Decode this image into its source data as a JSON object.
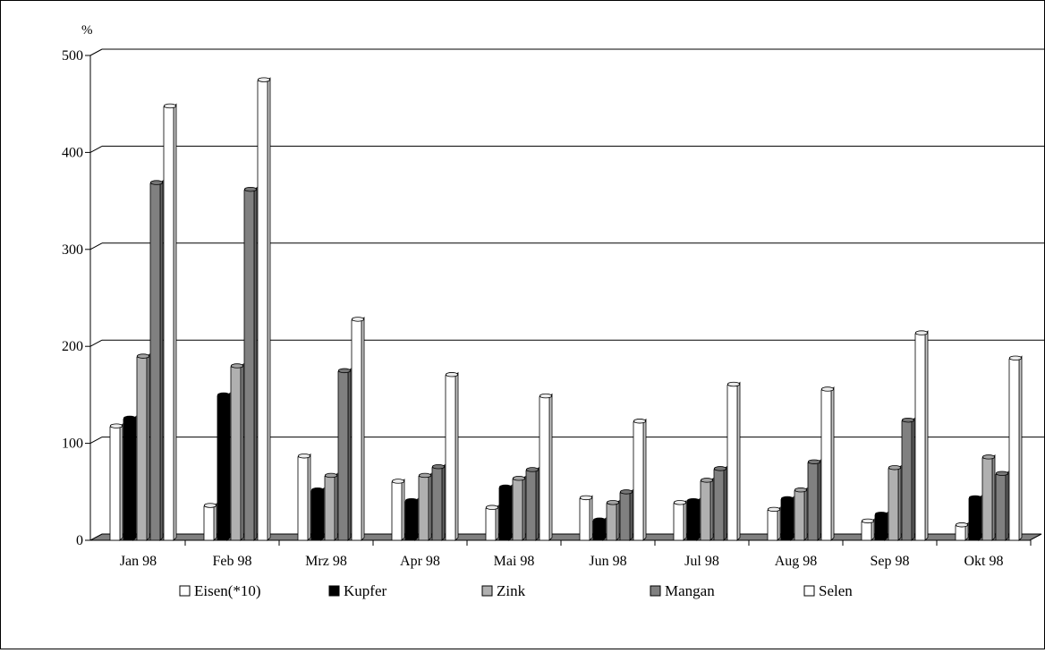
{
  "chart_data": {
    "type": "bar",
    "unit_label": "%",
    "categories": [
      "Jan 98",
      "Feb 98",
      "Mrz 98",
      "Apr 98",
      "Mai 98",
      "Jun 98",
      "Jul 98",
      "Aug 98",
      "Sep 98",
      "Okt 98"
    ],
    "y_ticks": [
      "0",
      "100",
      "200",
      "300",
      "400",
      "500"
    ],
    "ylim": [
      0,
      500
    ],
    "grid": true,
    "legend_position": "bottom",
    "series": [
      {
        "name": "Eisen(*10)",
        "color": "#ffffff",
        "values": [
          117,
          35,
          86,
          60,
          33,
          43,
          38,
          31,
          19,
          15
        ]
      },
      {
        "name": "Kupfer",
        "color": "#000000",
        "values": [
          125,
          149,
          51,
          40,
          54,
          20,
          40,
          42,
          26,
          43
        ]
      },
      {
        "name": "Zink",
        "color": "#b0b0b0",
        "values": [
          189,
          179,
          66,
          66,
          63,
          38,
          61,
          51,
          74,
          85
        ]
      },
      {
        "name": "Mangan",
        "color": "#808080",
        "values": [
          368,
          361,
          174,
          75,
          72,
          49,
          73,
          80,
          123,
          68
        ]
      },
      {
        "name": "Selen",
        "color": "#ffffff",
        "values": [
          447,
          474,
          227,
          170,
          148,
          122,
          160,
          155,
          213,
          187
        ]
      }
    ]
  }
}
